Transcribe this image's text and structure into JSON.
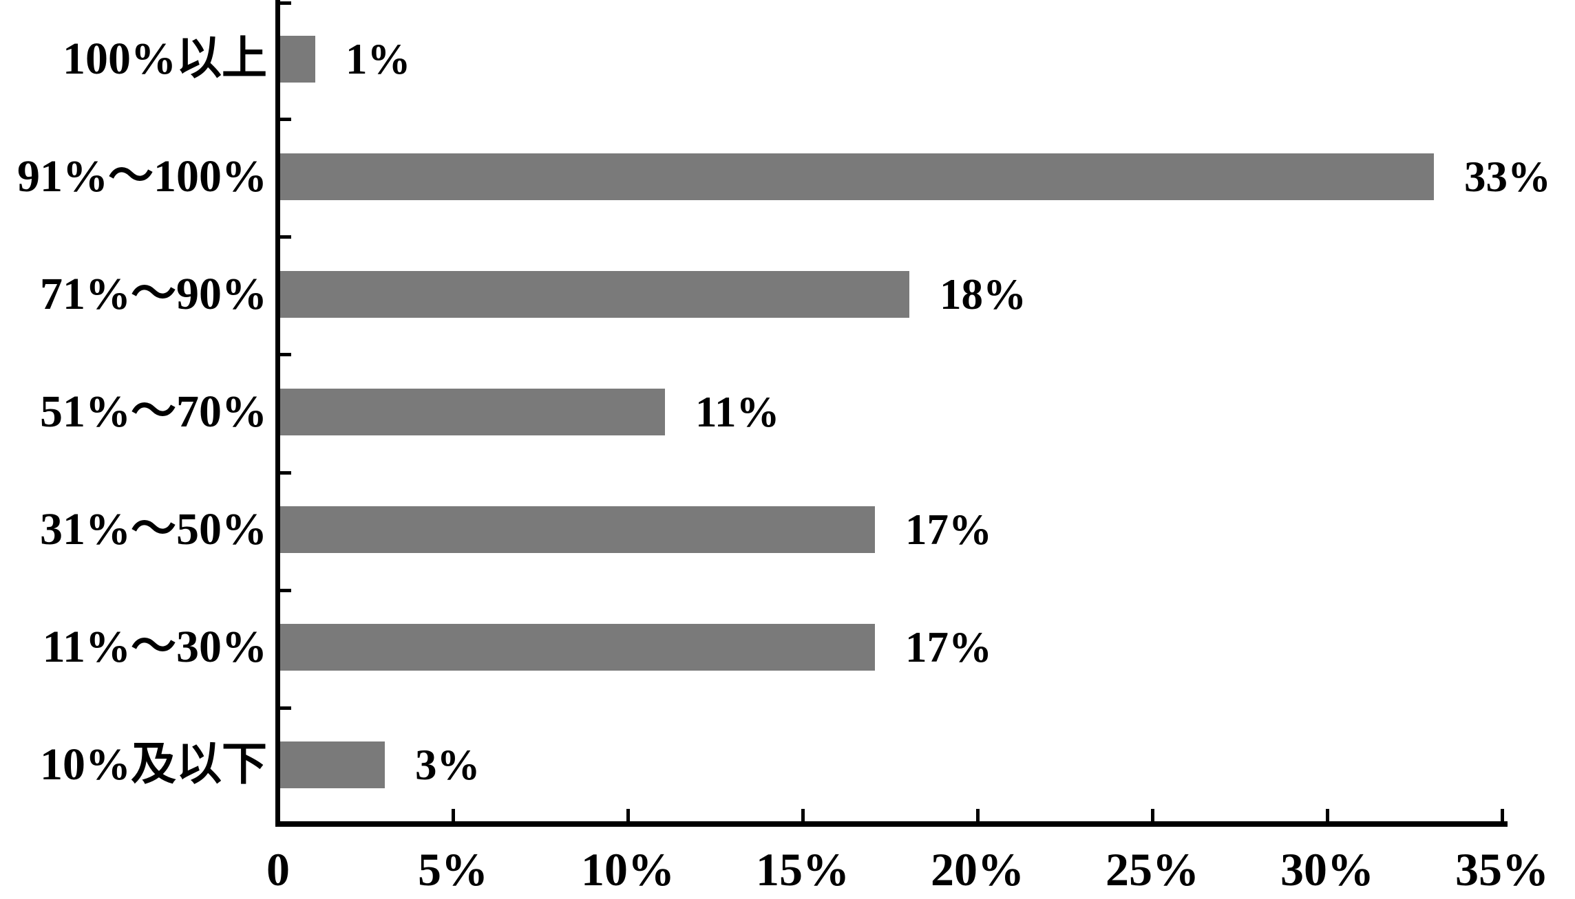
{
  "chart_data": {
    "type": "bar",
    "orientation": "horizontal",
    "title": "",
    "categories": [
      "100%以上",
      "91%～100%",
      "71%～90%",
      "51%～70%",
      "31%～50%",
      "11%～30%",
      "10%及以下"
    ],
    "values": [
      1,
      33,
      18,
      11,
      17,
      17,
      3
    ],
    "value_labels": [
      "1%",
      "33%",
      "18%",
      "11%",
      "17%",
      "17%",
      "3%"
    ],
    "xlabel": "",
    "ylabel": "",
    "xlim": [
      0,
      35
    ],
    "x_ticks": [
      0,
      5,
      10,
      15,
      20,
      25,
      30,
      35
    ],
    "x_tick_labels": [
      "0",
      "5%",
      "10%",
      "15%",
      "20%",
      "25%",
      "30%",
      "35%"
    ],
    "grid": false,
    "legend_position": "none",
    "colors": {
      "bar": "#7a7a7a",
      "axis": "#000000",
      "text": "#000000",
      "background": "#ffffff"
    }
  }
}
